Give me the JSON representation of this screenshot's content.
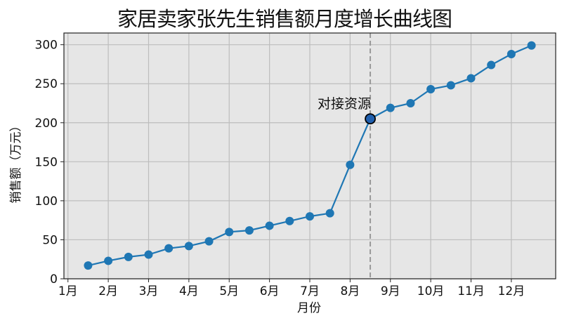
{
  "chart_data": {
    "type": "line",
    "title": "家居卖家张先生销售额月度增长曲线图",
    "xlabel": "月份",
    "ylabel": "销售额（万元）",
    "xlim": [
      0.9,
      13.1
    ],
    "ylim": [
      0,
      315
    ],
    "grid": true,
    "x_ticks": [
      1,
      2,
      3,
      4,
      5,
      6,
      7,
      8,
      9,
      10,
      11,
      12
    ],
    "x_tick_labels": [
      "1月",
      "2月",
      "3月",
      "4月",
      "5月",
      "6月",
      "7月",
      "8月",
      "9月",
      "10月",
      "11月",
      "12月"
    ],
    "y_ticks": [
      0,
      50,
      100,
      150,
      200,
      250,
      300
    ],
    "y_tick_labels": [
      "0",
      "50",
      "100",
      "150",
      "200",
      "250",
      "300"
    ],
    "series": [
      {
        "name": "销售额",
        "color": "#1f77b4",
        "x": [
          1.5,
          2.0,
          2.5,
          3.0,
          3.5,
          4.0,
          4.5,
          5.0,
          5.5,
          6.0,
          6.5,
          7.0,
          7.5,
          8.0,
          8.5,
          9.0,
          9.5,
          10.0,
          10.5,
          11.0,
          11.5,
          12.0,
          12.5
        ],
        "values": [
          17,
          23,
          28,
          31,
          39,
          42,
          48,
          60,
          62,
          68,
          74,
          80,
          84,
          146,
          205,
          219,
          225,
          243,
          248,
          257,
          274,
          288,
          299
        ]
      }
    ],
    "annotations": [
      {
        "text": "对接资源",
        "x": 8.5,
        "y": 205,
        "highlight_color": "#1f5fae",
        "vline_x": 8.5,
        "vline_style": "dashed",
        "vline_color": "#999999"
      }
    ],
    "colors": {
      "plot_bg": "#e6e6e6",
      "grid": "#bdbdbd",
      "line": "#1f77b4",
      "page_bg": "#ffffff"
    }
  }
}
